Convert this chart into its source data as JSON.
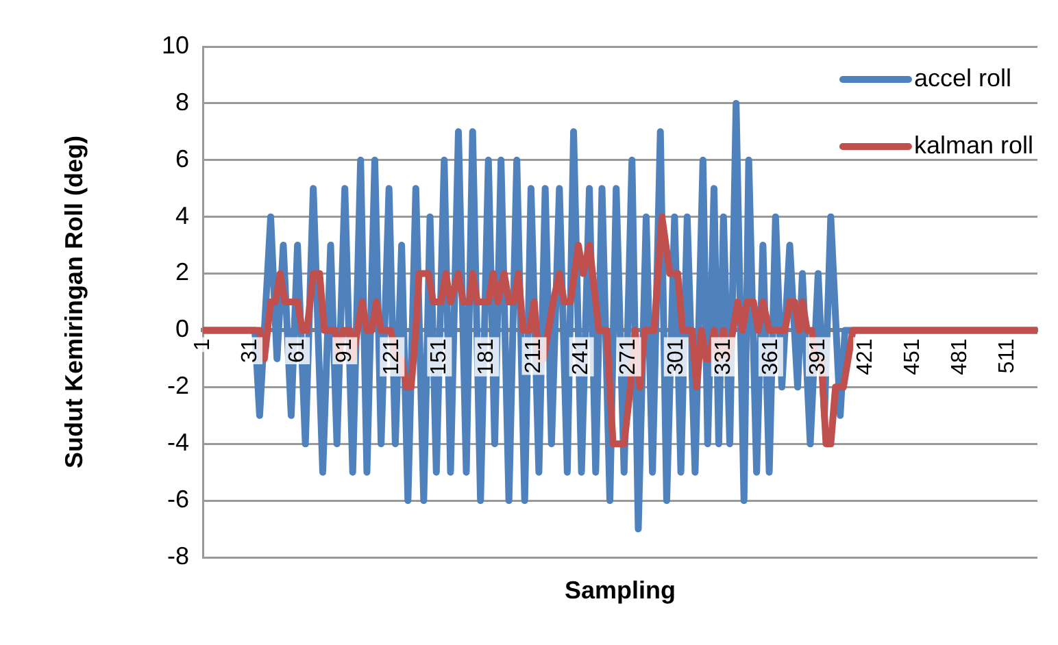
{
  "chart_data": {
    "type": "line",
    "xlabel": "Sampling",
    "ylabel": "Sudut Kemiringan Roll (deg)",
    "xlim": [
      1,
      530
    ],
    "xticks": [
      1,
      31,
      61,
      91,
      121,
      151,
      181,
      211,
      241,
      271,
      301,
      331,
      361,
      391,
      421,
      451,
      481,
      511
    ],
    "ylim": [
      -8,
      10
    ],
    "yticks": [
      -8,
      -6,
      -4,
      -2,
      0,
      2,
      4,
      6,
      8,
      10
    ],
    "grid": "y",
    "legend": "top right",
    "marker": "none",
    "line_style": "solid",
    "series": [
      {
        "name": "accel roll",
        "color": "#4f81bd",
        "x": [
          1,
          34,
          37,
          44,
          48,
          52,
          57,
          61,
          66,
          71,
          77,
          82,
          86,
          91,
          96,
          101,
          105,
          110,
          114,
          119,
          123,
          127,
          131,
          136,
          141,
          145,
          149,
          154,
          158,
          163,
          168,
          172,
          177,
          182,
          186,
          190,
          195,
          200,
          205,
          209,
          214,
          218,
          222,
          227,
          232,
          236,
          241,
          246,
          250,
          254,
          259,
          263,
          268,
          273,
          277,
          282,
          286,
          291,
          295,
          300,
          304,
          308,
          313,
          318,
          321,
          325,
          328,
          331,
          335,
          339,
          344,
          347,
          352,
          356,
          360,
          364,
          368,
          373,
          378,
          381,
          386,
          391,
          395,
          399,
          405,
          408,
          411,
          530
        ],
        "values": [
          0,
          0,
          -3,
          4,
          -1,
          3,
          -3,
          3,
          -4,
          5,
          -5,
          3,
          -4,
          5,
          -5,
          6,
          -5,
          6,
          -4,
          5,
          -4,
          3,
          -6,
          5,
          -6,
          4,
          -5,
          6,
          -5,
          7,
          -5,
          7,
          -6,
          6,
          -4,
          6,
          -6,
          6,
          -6,
          5,
          -5,
          5,
          -4,
          5,
          -5,
          7,
          -5,
          5,
          -5,
          5,
          -6,
          5,
          -5,
          6,
          -7,
          4,
          -5,
          7,
          -6,
          4,
          -5,
          4,
          -5,
          6,
          -4,
          5,
          -4,
          4,
          -4,
          8,
          -6,
          6,
          -5,
          3,
          -5,
          4,
          -2,
          3,
          -2,
          2,
          -4,
          2,
          -3,
          4,
          -3,
          0,
          0,
          0
        ]
      },
      {
        "name": "kalman roll",
        "color": "#c0504d",
        "x": [
          1,
          37,
          40,
          44,
          47,
          50,
          53,
          58,
          61,
          64,
          67,
          71,
          75,
          78,
          85,
          87,
          90,
          94,
          96,
          99,
          102,
          105,
          108,
          111,
          114,
          120,
          124,
          127,
          130,
          133,
          136,
          138,
          144,
          147,
          152,
          155,
          158,
          163,
          166,
          170,
          172,
          175,
          182,
          185,
          188,
          192,
          195,
          198,
          201,
          204,
          208,
          211,
          214,
          217,
          220,
          223,
          227,
          230,
          234,
          239,
          242,
          246,
          250,
          252,
          257,
          259,
          261,
          268,
          272,
          275,
          278,
          281,
          287,
          292,
          297,
          302,
          305,
          311,
          314,
          317,
          320,
          322,
          325,
          328,
          331,
          334,
          337,
          340,
          343,
          346,
          350,
          353,
          356,
          360,
          370,
          373,
          376,
          379,
          381,
          384,
          387,
          389,
          393,
          396,
          399,
          402,
          407,
          410,
          413,
          530
        ],
        "values": [
          0,
          0,
          -1,
          1,
          1,
          2,
          1,
          1,
          1,
          0,
          0,
          2,
          2,
          0,
          0,
          -1,
          0,
          0,
          -1,
          0,
          1,
          0,
          0,
          1,
          0,
          0,
          -1,
          -1,
          -2,
          -2,
          0,
          2,
          2,
          1,
          1,
          2,
          1,
          2,
          1,
          1,
          2,
          1,
          1,
          2,
          1,
          2,
          1,
          1,
          2,
          0,
          0,
          1,
          -1,
          -1,
          0,
          1,
          2,
          1,
          1,
          3,
          2,
          3,
          1,
          0,
          0,
          -2,
          -4,
          -4,
          -2,
          0,
          -2,
          0,
          0,
          4,
          2,
          2,
          0,
          0,
          -2,
          0,
          -1,
          -1,
          0,
          -1,
          0,
          -1,
          0,
          1,
          0,
          1,
          1,
          0,
          1,
          0,
          0,
          1,
          1,
          0,
          1,
          0,
          0,
          -1,
          -1,
          -4,
          -4,
          -2,
          -2,
          -1,
          0,
          0
        ]
      }
    ]
  }
}
